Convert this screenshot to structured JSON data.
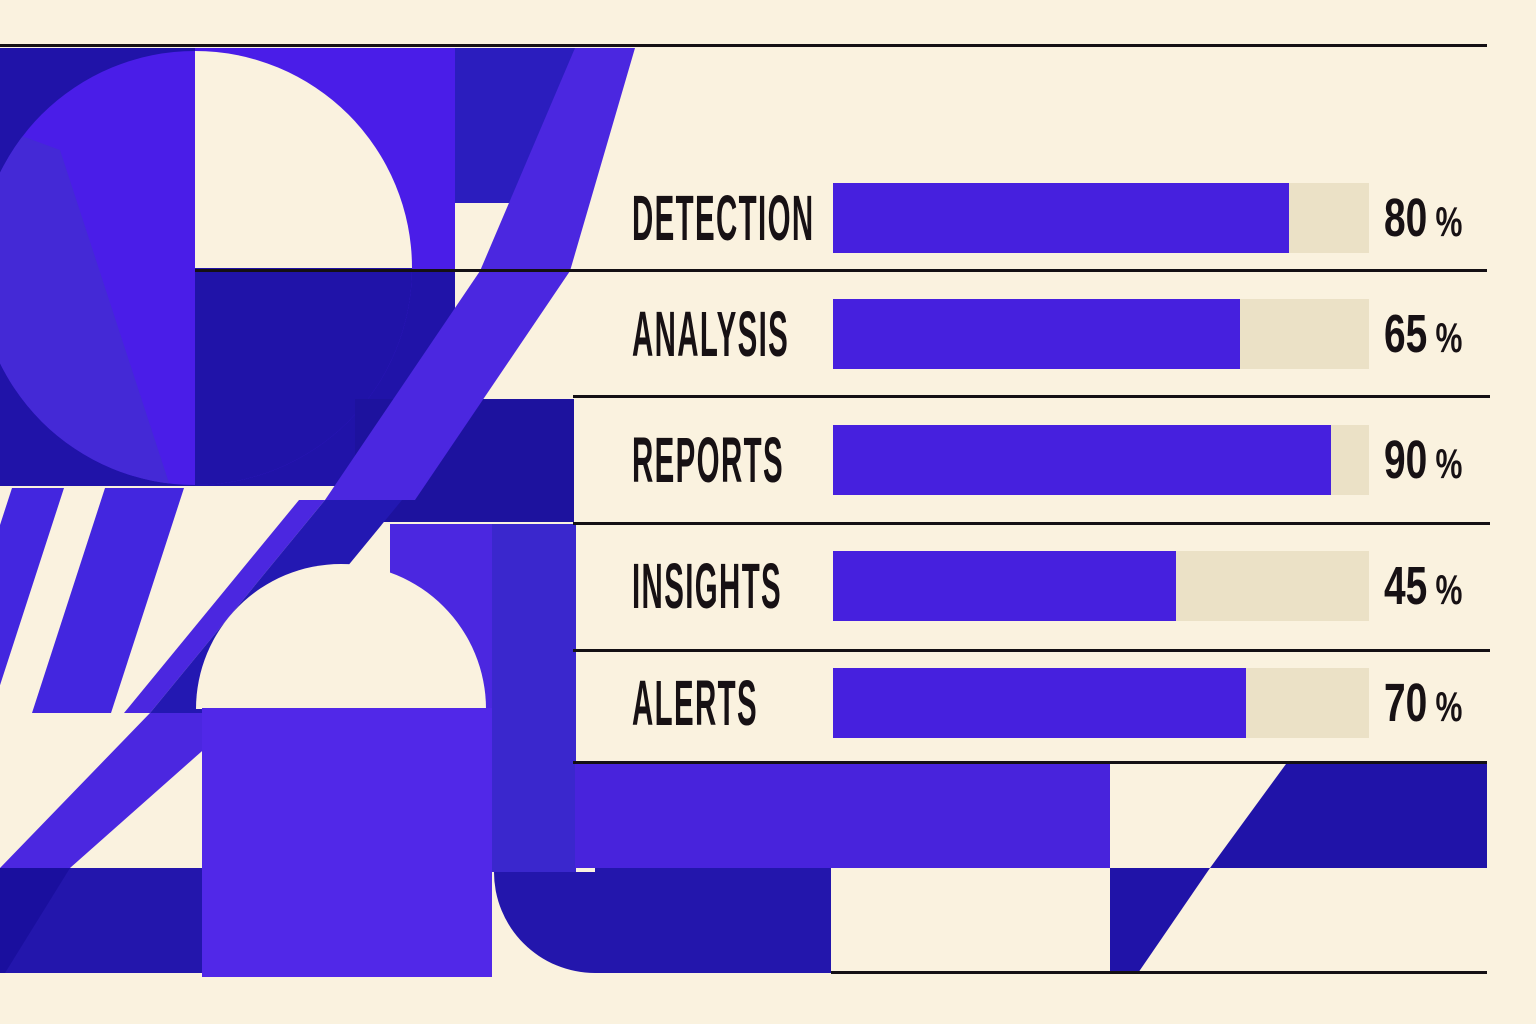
{
  "chart_data": {
    "type": "bar",
    "orientation": "horizontal",
    "title": "",
    "categories": [
      "DETECTION",
      "ANALYSIS",
      "REPORTS",
      "INSIGHTS",
      "ALERTS"
    ],
    "values": [
      80,
      65,
      90,
      45,
      70
    ],
    "unit": "%",
    "xlim": [
      0,
      100
    ],
    "grid": false,
    "legend": false,
    "value_label_position": "right",
    "bar_fill_visual_pct": [
      85,
      76,
      93,
      64,
      77
    ],
    "style": "bauhaus-geometric-poster"
  },
  "rows": [
    {
      "label": "DETECTION",
      "value": "80",
      "unit": "%",
      "fill_pct": 85
    },
    {
      "label": "ANALYSIS",
      "value": "65",
      "unit": "%",
      "fill_pct": 76
    },
    {
      "label": "REPORTS",
      "value": "90",
      "unit": "%",
      "fill_pct": 93
    },
    {
      "label": "INSIGHTS",
      "value": "45",
      "unit": "%",
      "fill_pct": 64
    },
    {
      "label": "ALERTS",
      "value": "70",
      "unit": "%",
      "fill_pct": 77
    }
  ],
  "colors": {
    "background_cream": "#FAF2DF",
    "bar_track_beige": "#EBE1C6",
    "bar_fill_purple": "#4620DE",
    "line_black": "#141014",
    "text_ink": "#171114",
    "art_bright_purple": "#4A1DE8",
    "art_navy": "#2013A8",
    "art_medium_blue": "#2B1DBE",
    "art_violet": "#5128E8"
  }
}
